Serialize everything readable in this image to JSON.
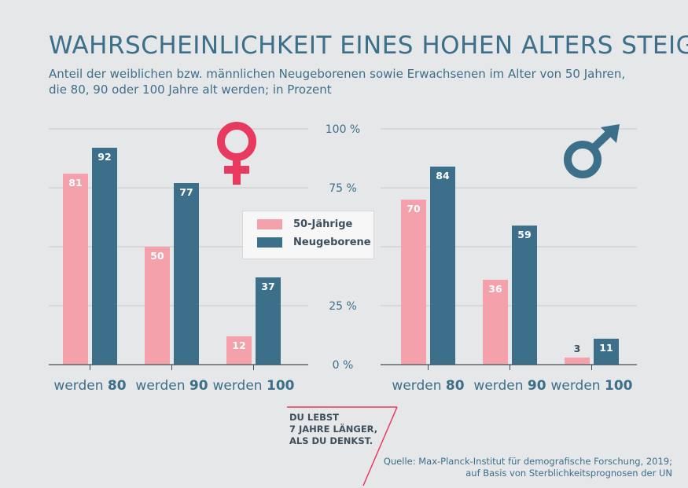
{
  "header": {
    "title": "WAHRSCHEINLICHKEIT EINES HOHEN ALTERS STEIGT",
    "subtitle_line1": "Anteil der weiblichen bzw. männlichen Neugeborenen sowie Erwachsenen im Alter von 50 Jahren,",
    "subtitle_line2": "die 80, 90 oder 100 Jahre alt werden; in Prozent"
  },
  "legend": {
    "item1": "50-Jährige",
    "item2": "Neugeborene"
  },
  "slogan": {
    "line1": "DU LEBST",
    "line2": "7 JAHRE LÄNGER,",
    "line3": "ALS DU DENKST."
  },
  "source": {
    "line1": "Quelle: Max-Planck-Institut für demografische Forschung, 2019;",
    "line2": "auf Basis von Sterblichkeitsprognosen der UN"
  },
  "colors": {
    "pink": "#f4a1ac",
    "teal": "#3b6f8a",
    "venus": "#e8395f",
    "background": "#e6e7e9"
  },
  "icons": {
    "female": "venus-icon",
    "male": "mars-icon"
  },
  "chart_data": [
    {
      "type": "bar",
      "categories": [
        "werden 80",
        "werden 90",
        "werden 100"
      ],
      "category_prefix": "werden",
      "category_numbers": [
        "80",
        "90",
        "100"
      ],
      "series": [
        {
          "name": "50-Jährige",
          "values": [
            81,
            50,
            12
          ]
        },
        {
          "name": "Neugeborene",
          "values": [
            92,
            77,
            37
          ]
        }
      ],
      "ylim": [
        0,
        100
      ],
      "yticks": [
        0,
        25,
        50,
        75,
        100
      ]
    },
    {
      "type": "bar",
      "categories": [
        "werden 80",
        "werden 90",
        "werden 100"
      ],
      "category_prefix": "werden",
      "category_numbers": [
        "80",
        "90",
        "100"
      ],
      "series": [
        {
          "name": "50-Jährige",
          "values": [
            70,
            36,
            3
          ]
        },
        {
          "name": "Neugeborene",
          "values": [
            84,
            59,
            11
          ]
        }
      ],
      "ylim": [
        0,
        100
      ],
      "yticks": [
        0,
        25,
        50,
        75,
        100
      ]
    }
  ],
  "axis": {
    "tick_labels": [
      "0 %",
      "25 %",
      "",
      "75 %",
      "100 %"
    ]
  }
}
